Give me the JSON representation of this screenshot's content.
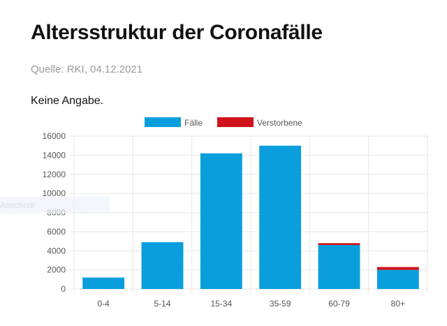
{
  "header": {
    "title": "Altersstruktur der Coronafälle",
    "source": "Quelle: RKI, 04.12.2021",
    "note": "Keine Angabe."
  },
  "overlay": {
    "ghost_text": "Abschnitt"
  },
  "colors": {
    "cases": "#0a9fdc",
    "deaths": "#d0121b",
    "grid": "#e6e6e6",
    "axis_text": "#555555"
  },
  "chart_data": {
    "type": "bar",
    "stacked": true,
    "categories": [
      "0-4",
      "5-14",
      "15-34",
      "35-59",
      "60-79",
      "80+"
    ],
    "series": [
      {
        "name": "Fälle",
        "color": "#0a9fdc",
        "values": [
          1200,
          4900,
          14200,
          15000,
          4600,
          2000
        ]
      },
      {
        "name": "Verstorbene",
        "color": "#d0121b",
        "values": [
          0,
          0,
          0,
          0,
          200,
          300
        ]
      }
    ],
    "ylim": [
      0,
      16000
    ],
    "yticks": [
      0,
      2000,
      4000,
      6000,
      8000,
      10000,
      12000,
      14000,
      16000
    ],
    "grid": true,
    "legend_position": "top-center",
    "title": "",
    "xlabel": "",
    "ylabel": ""
  }
}
